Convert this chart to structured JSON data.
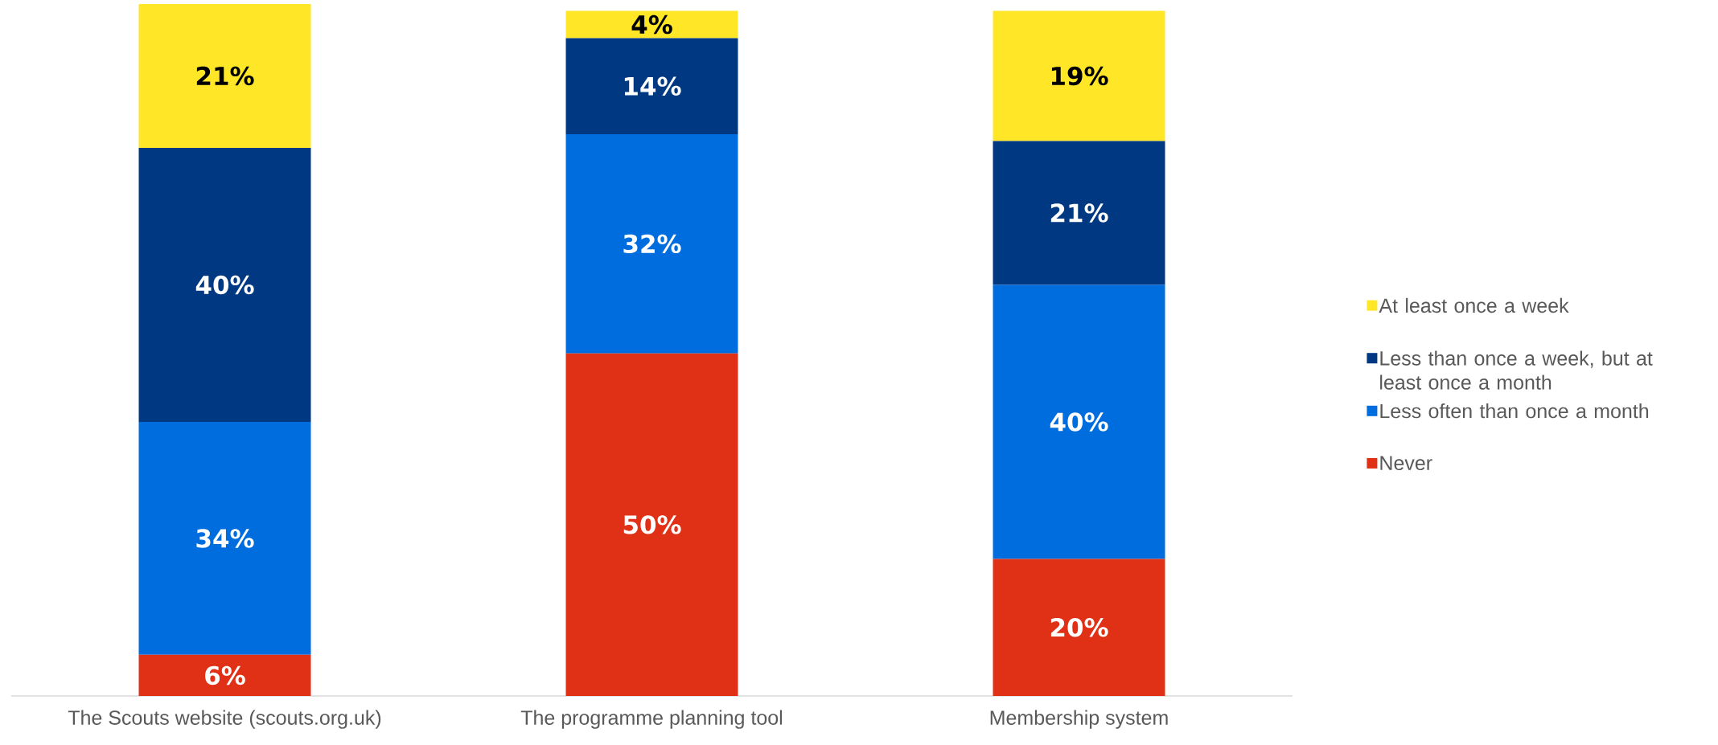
{
  "chart_data": {
    "type": "bar",
    "stacked": true,
    "legend": "right",
    "categories": [
      "The Scouts website (scouts.org.uk)",
      "The programme planning tool",
      "Membership system"
    ],
    "series": [
      {
        "name": "Never",
        "color": "#e03016",
        "values": [
          6,
          50,
          20
        ],
        "value_labels": [
          "6%",
          "50%",
          "20%"
        ]
      },
      {
        "name": "Less often than once a month",
        "color": "#006ddf",
        "values": [
          34,
          32,
          40
        ],
        "value_labels": [
          "34%",
          "32%",
          "40%"
        ]
      },
      {
        "name": "Less than once a week, but at least once a month",
        "color": "#003982",
        "values": [
          40,
          14,
          21
        ],
        "value_labels": [
          "40%",
          "14%",
          "21%"
        ]
      },
      {
        "name": "At least once a week",
        "color": "#ffe627",
        "values": [
          21,
          4,
          19
        ],
        "value_labels": [
          "21%",
          "4%",
          "19%"
        ]
      }
    ]
  }
}
